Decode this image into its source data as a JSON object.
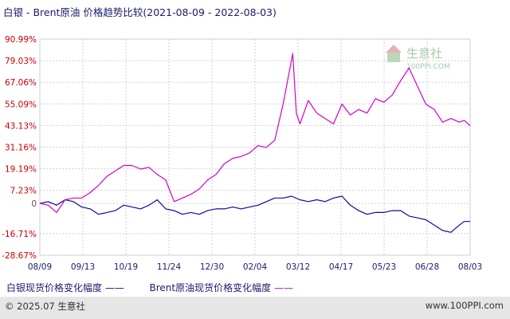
{
  "header": {
    "title": "白银 - Brent原油 价格趋势比较(2021-08-09 - 2022-08-03)"
  },
  "legend": {
    "series1": "白银现货价格变化幅度",
    "series1_line": "——",
    "series2": "Brent原油现货价格变化幅度",
    "series2_line": "——"
  },
  "footer": {
    "copyright": "© 2025.07 生意社",
    "site": "www.100PPI.com"
  },
  "watermark": {
    "name": "生意社",
    "url": "100PPI.COM"
  },
  "colors": {
    "silver": "#0a0a9e",
    "brent": "#d400c4",
    "ylabels": "#cc0000",
    "grid": "#c8c8c8"
  },
  "chart_data": {
    "type": "line",
    "title": "白银 - Brent原油 价格趋势比较(2021-08-09 - 2022-08-03)",
    "xlabel": "",
    "ylabel": "",
    "x_tick_labels": [
      "08/09",
      "09/13",
      "10/19",
      "11/24",
      "12/30",
      "02/04",
      "03/12",
      "04/17",
      "05/23",
      "06/28",
      "08/03"
    ],
    "y_tick_labels": [
      "90.99%",
      "79.03%",
      "67.06%",
      "55.09%",
      "43.13%",
      "31.16%",
      "19.19%",
      "7.23%",
      "0",
      "-16.71%",
      "-28.67%"
    ],
    "y_ticks": [
      90.99,
      79.03,
      67.06,
      55.09,
      43.13,
      31.16,
      19.19,
      7.23,
      0,
      -16.71,
      -28.67
    ],
    "ylim": [
      -28.67,
      90.99
    ],
    "xlim": [
      "2021-08-09",
      "2022-08-03"
    ],
    "grid": true,
    "series": [
      {
        "name": "白银现货价格变化幅度",
        "color": "#0a0a9e",
        "points": [
          [
            "2021-08-09",
            0
          ],
          [
            "2021-08-16",
            1
          ],
          [
            "2021-08-23",
            -1
          ],
          [
            "2021-08-30",
            2
          ],
          [
            "2021-09-06",
            1
          ],
          [
            "2021-09-13",
            -2
          ],
          [
            "2021-09-20",
            -3
          ],
          [
            "2021-09-27",
            -6
          ],
          [
            "2021-10-04",
            -5
          ],
          [
            "2021-10-11",
            -4
          ],
          [
            "2021-10-18",
            -1
          ],
          [
            "2021-10-25",
            -2
          ],
          [
            "2021-11-01",
            -3
          ],
          [
            "2021-11-08",
            -1
          ],
          [
            "2021-11-15",
            2
          ],
          [
            "2021-11-22",
            -3
          ],
          [
            "2021-11-29",
            -4
          ],
          [
            "2021-12-06",
            -6
          ],
          [
            "2021-12-13",
            -5
          ],
          [
            "2021-12-20",
            -6
          ],
          [
            "2021-12-27",
            -4
          ],
          [
            "2022-01-03",
            -3
          ],
          [
            "2022-01-10",
            -3
          ],
          [
            "2022-01-17",
            -2
          ],
          [
            "2022-01-24",
            -3
          ],
          [
            "2022-01-31",
            -2
          ],
          [
            "2022-02-07",
            -1
          ],
          [
            "2022-02-14",
            1
          ],
          [
            "2022-02-21",
            3
          ],
          [
            "2022-02-28",
            3
          ],
          [
            "2022-03-07",
            4
          ],
          [
            "2022-03-14",
            2
          ],
          [
            "2022-03-21",
            1
          ],
          [
            "2022-03-28",
            2
          ],
          [
            "2022-04-04",
            1
          ],
          [
            "2022-04-11",
            3
          ],
          [
            "2022-04-18",
            4
          ],
          [
            "2022-04-25",
            -1
          ],
          [
            "2022-05-02",
            -4
          ],
          [
            "2022-05-09",
            -6
          ],
          [
            "2022-05-16",
            -5
          ],
          [
            "2022-05-23",
            -5
          ],
          [
            "2022-05-30",
            -4
          ],
          [
            "2022-06-06",
            -4
          ],
          [
            "2022-06-13",
            -7
          ],
          [
            "2022-06-20",
            -8
          ],
          [
            "2022-06-27",
            -9
          ],
          [
            "2022-07-04",
            -12
          ],
          [
            "2022-07-11",
            -15
          ],
          [
            "2022-07-18",
            -16
          ],
          [
            "2022-07-25",
            -12
          ],
          [
            "2022-07-29",
            -10
          ],
          [
            "2022-08-03",
            -10
          ]
        ]
      },
      {
        "name": "Brent原油现货价格变化幅度",
        "color": "#d400c4",
        "points": [
          [
            "2021-08-09",
            0
          ],
          [
            "2021-08-16",
            -1
          ],
          [
            "2021-08-23",
            -5
          ],
          [
            "2021-08-30",
            2
          ],
          [
            "2021-09-06",
            3
          ],
          [
            "2021-09-13",
            3
          ],
          [
            "2021-09-20",
            6
          ],
          [
            "2021-09-27",
            10
          ],
          [
            "2021-10-04",
            15
          ],
          [
            "2021-10-11",
            18
          ],
          [
            "2021-10-18",
            21
          ],
          [
            "2021-10-25",
            21
          ],
          [
            "2021-11-01",
            19
          ],
          [
            "2021-11-08",
            20
          ],
          [
            "2021-11-15",
            16
          ],
          [
            "2021-11-22",
            13
          ],
          [
            "2021-11-29",
            1
          ],
          [
            "2021-12-06",
            3
          ],
          [
            "2021-12-13",
            5
          ],
          [
            "2021-12-20",
            8
          ],
          [
            "2021-12-27",
            13
          ],
          [
            "2022-01-03",
            16
          ],
          [
            "2022-01-10",
            22
          ],
          [
            "2022-01-17",
            25
          ],
          [
            "2022-01-24",
            26
          ],
          [
            "2022-01-31",
            28
          ],
          [
            "2022-02-07",
            32
          ],
          [
            "2022-02-14",
            31
          ],
          [
            "2022-02-21",
            35
          ],
          [
            "2022-02-28",
            55
          ],
          [
            "2022-03-08",
            83
          ],
          [
            "2022-03-11",
            50
          ],
          [
            "2022-03-14",
            44
          ],
          [
            "2022-03-21",
            57
          ],
          [
            "2022-03-28",
            50
          ],
          [
            "2022-04-04",
            47
          ],
          [
            "2022-04-11",
            44
          ],
          [
            "2022-04-18",
            55
          ],
          [
            "2022-04-25",
            49
          ],
          [
            "2022-05-02",
            52
          ],
          [
            "2022-05-09",
            50
          ],
          [
            "2022-05-16",
            58
          ],
          [
            "2022-05-23",
            56
          ],
          [
            "2022-05-30",
            60
          ],
          [
            "2022-06-06",
            68
          ],
          [
            "2022-06-13",
            75
          ],
          [
            "2022-06-20",
            65
          ],
          [
            "2022-06-27",
            55
          ],
          [
            "2022-07-04",
            52
          ],
          [
            "2022-07-11",
            45
          ],
          [
            "2022-07-18",
            47
          ],
          [
            "2022-07-25",
            45
          ],
          [
            "2022-07-29",
            46
          ],
          [
            "2022-08-03",
            43
          ]
        ]
      }
    ]
  }
}
